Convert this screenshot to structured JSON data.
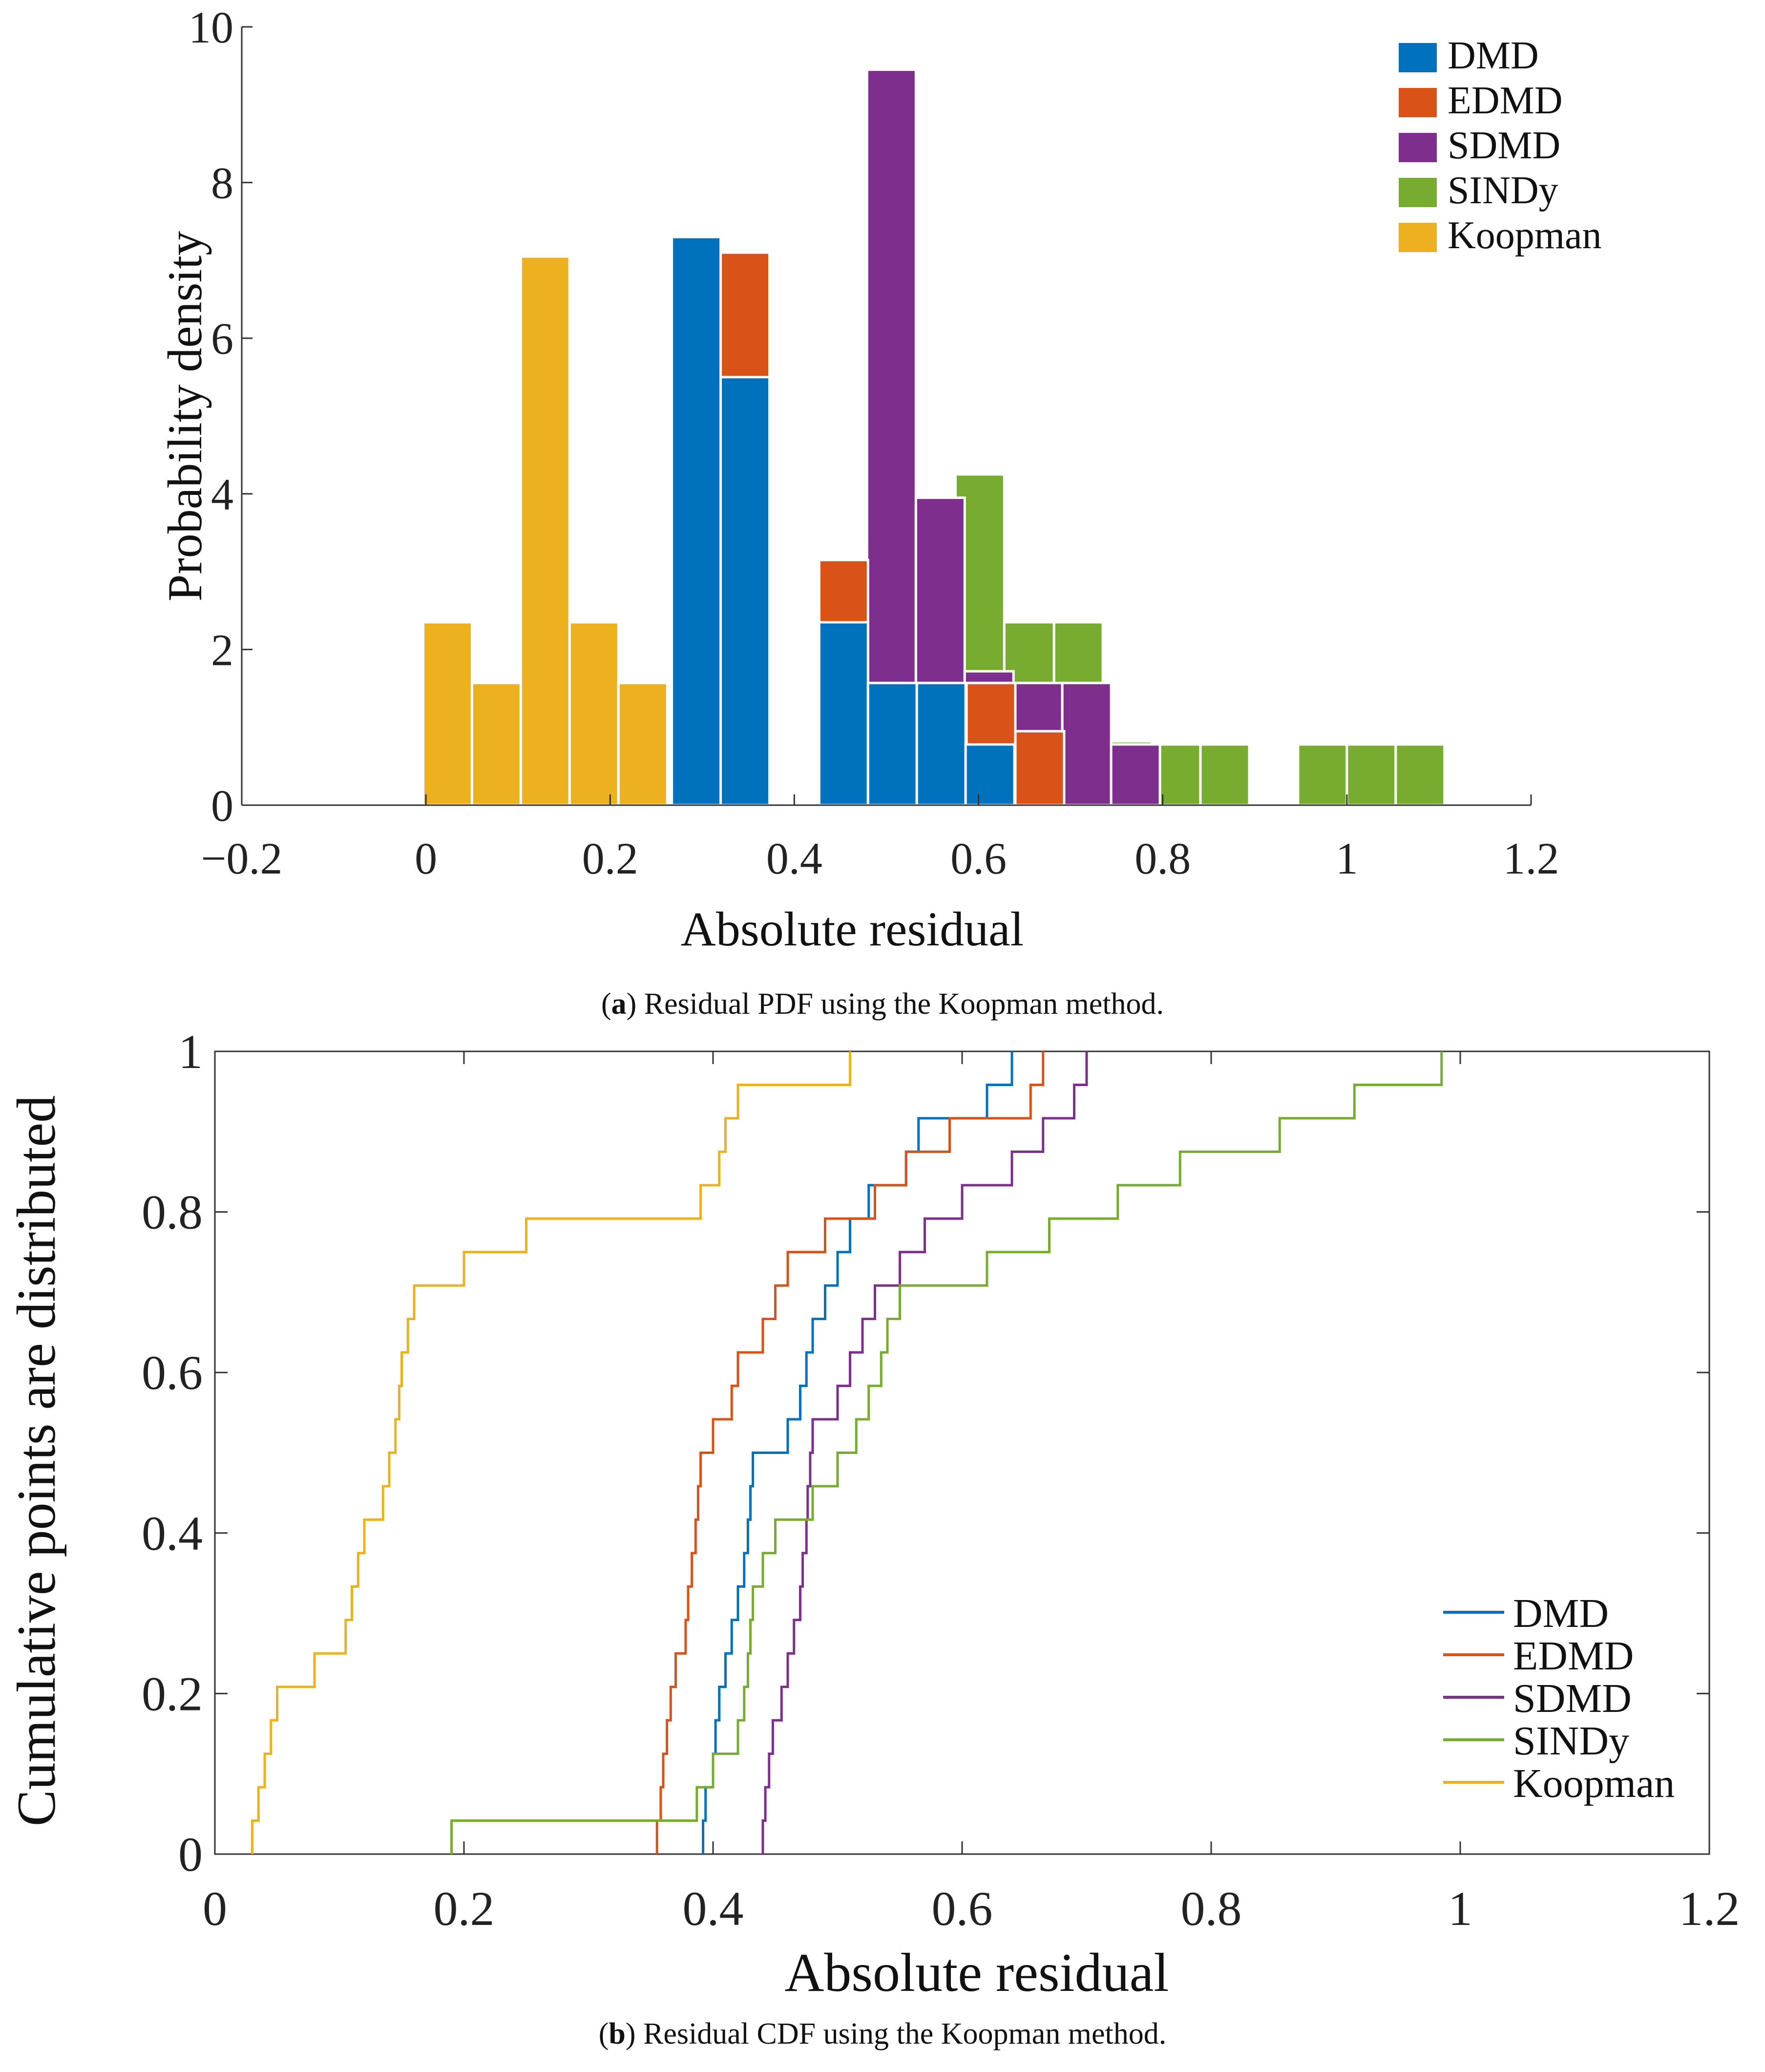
{
  "colors": {
    "DMD": "#0072BD",
    "EDMD": "#D95319",
    "SDMD": "#7E2F8E",
    "SINDy": "#77AC30",
    "Koopman": "#EDB120"
  },
  "captions": {
    "a_letter": "a",
    "a_text": " Residual PDF using the Koopman method.",
    "b_letter": "b",
    "b_text": " Residual CDF using the Koopman method."
  },
  "chart_data": [
    {
      "type": "bar",
      "title": "",
      "xlabel": "Absolute residual",
      "ylabel": "Probability density",
      "xlim": [
        -0.2,
        1.2
      ],
      "ylim": [
        0,
        10
      ],
      "xticks": [
        "−0.2",
        "0",
        "0.2",
        "0.4",
        "0.6",
        "0.8",
        "1",
        "1.2"
      ],
      "xtick_values": [
        -0.2,
        0,
        0.2,
        0.4,
        0.6,
        0.8,
        1,
        1.2
      ],
      "yticks": [
        "0",
        "2",
        "4",
        "6",
        "8",
        "10"
      ],
      "ytick_values": [
        0,
        2,
        4,
        6,
        8,
        10
      ],
      "legend": [
        "DMD",
        "EDMD",
        "SDMD",
        "SINDy",
        "Koopman"
      ],
      "legend_position": "top-right",
      "series": [
        {
          "name": "SINDy",
          "bins": [
            [
              0.575,
              0.628,
              4.25
            ],
            [
              0.628,
              0.682,
              2.35
            ],
            [
              0.682,
              0.735,
              2.35
            ],
            [
              0.735,
              0.788,
              0.82
            ],
            [
              0.788,
              0.841,
              0.78
            ],
            [
              0.841,
              0.894,
              0.78
            ],
            [
              0.947,
              1.0,
              0.78
            ],
            [
              1.0,
              1.053,
              0.78
            ],
            [
              1.053,
              1.106,
              0.78
            ]
          ]
        },
        {
          "name": "SDMD",
          "bins": [
            [
              0.479,
              0.532,
              9.45
            ],
            [
              0.532,
              0.585,
              3.95
            ],
            [
              0.585,
              0.638,
              1.72
            ],
            [
              0.638,
              0.691,
              1.57
            ],
            [
              0.691,
              0.744,
              1.57
            ],
            [
              0.744,
              0.797,
              0.78
            ]
          ]
        },
        {
          "name": "EDMD",
          "bins": [
            [
              0.32,
              0.373,
              7.1
            ],
            [
              0.427,
              0.48,
              3.15
            ],
            [
              0.48,
              0.533,
              0.78
            ],
            [
              0.587,
              0.64,
              1.57
            ],
            [
              0.64,
              0.693,
              0.95
            ]
          ]
        },
        {
          "name": "DMD",
          "bins": [
            [
              0.267,
              0.32,
              7.3
            ],
            [
              0.32,
              0.373,
              5.5
            ],
            [
              0.427,
              0.48,
              2.35
            ],
            [
              0.48,
              0.533,
              1.57
            ],
            [
              0.533,
              0.586,
              1.57
            ],
            [
              0.586,
              0.639,
              0.78
            ]
          ]
        },
        {
          "name": "Koopman",
          "bins": [
            [
              -0.003,
              0.05,
              2.35
            ],
            [
              0.05,
              0.103,
              1.57
            ],
            [
              0.103,
              0.156,
              7.05
            ],
            [
              0.156,
              0.209,
              2.35
            ],
            [
              0.209,
              0.262,
              1.57
            ]
          ]
        }
      ]
    },
    {
      "type": "line",
      "title": "",
      "xlabel": "Absolute residual",
      "ylabel": "Cumulative points are distributed",
      "xlim": [
        0,
        1.2
      ],
      "ylim": [
        0,
        1
      ],
      "xticks": [
        "0",
        "0.2",
        "0.4",
        "0.6",
        "0.8",
        "1",
        "1.2"
      ],
      "xtick_values": [
        0,
        0.2,
        0.4,
        0.6,
        0.8,
        1,
        1.2
      ],
      "yticks": [
        "0",
        "0.2",
        "0.4",
        "0.6",
        "0.8",
        "1"
      ],
      "ytick_values": [
        0,
        0.2,
        0.4,
        0.6,
        0.8,
        1
      ],
      "legend": [
        "DMD",
        "EDMD",
        "SDMD",
        "SINDy",
        "Koopman"
      ],
      "legend_position": "bottom-right",
      "series": [
        {
          "name": "DMD",
          "steps": [
            0.392,
            0.394,
            0.4,
            0.402,
            0.405,
            0.41,
            0.415,
            0.42,
            0.425,
            0.428,
            0.43,
            0.432,
            0.46,
            0.47,
            0.475,
            0.48,
            0.49,
            0.5,
            0.51,
            0.525,
            0.555,
            0.565,
            0.62,
            0.64
          ]
        },
        {
          "name": "EDMD",
          "steps": [
            0.355,
            0.358,
            0.36,
            0.363,
            0.366,
            0.37,
            0.378,
            0.38,
            0.383,
            0.386,
            0.388,
            0.39,
            0.4,
            0.415,
            0.42,
            0.44,
            0.45,
            0.46,
            0.49,
            0.53,
            0.555,
            0.59,
            0.655,
            0.665
          ]
        },
        {
          "name": "SDMD",
          "steps": [
            0.44,
            0.442,
            0.445,
            0.448,
            0.455,
            0.46,
            0.465,
            0.47,
            0.472,
            0.475,
            0.476,
            0.478,
            0.48,
            0.5,
            0.51,
            0.52,
            0.53,
            0.55,
            0.57,
            0.6,
            0.64,
            0.665,
            0.69,
            0.7
          ]
        },
        {
          "name": "SINDy",
          "steps": [
            0.19,
            0.387,
            0.4,
            0.42,
            0.425,
            0.428,
            0.43,
            0.432,
            0.44,
            0.45,
            0.48,
            0.5,
            0.515,
            0.525,
            0.535,
            0.54,
            0.55,
            0.62,
            0.67,
            0.725,
            0.775,
            0.855,
            0.915,
            0.985
          ]
        },
        {
          "name": "Koopman",
          "steps": [
            0.03,
            0.035,
            0.04,
            0.045,
            0.05,
            0.08,
            0.105,
            0.11,
            0.115,
            0.12,
            0.135,
            0.14,
            0.145,
            0.148,
            0.15,
            0.155,
            0.16,
            0.2,
            0.25,
            0.39,
            0.405,
            0.41,
            0.42,
            0.51
          ]
        }
      ]
    }
  ]
}
